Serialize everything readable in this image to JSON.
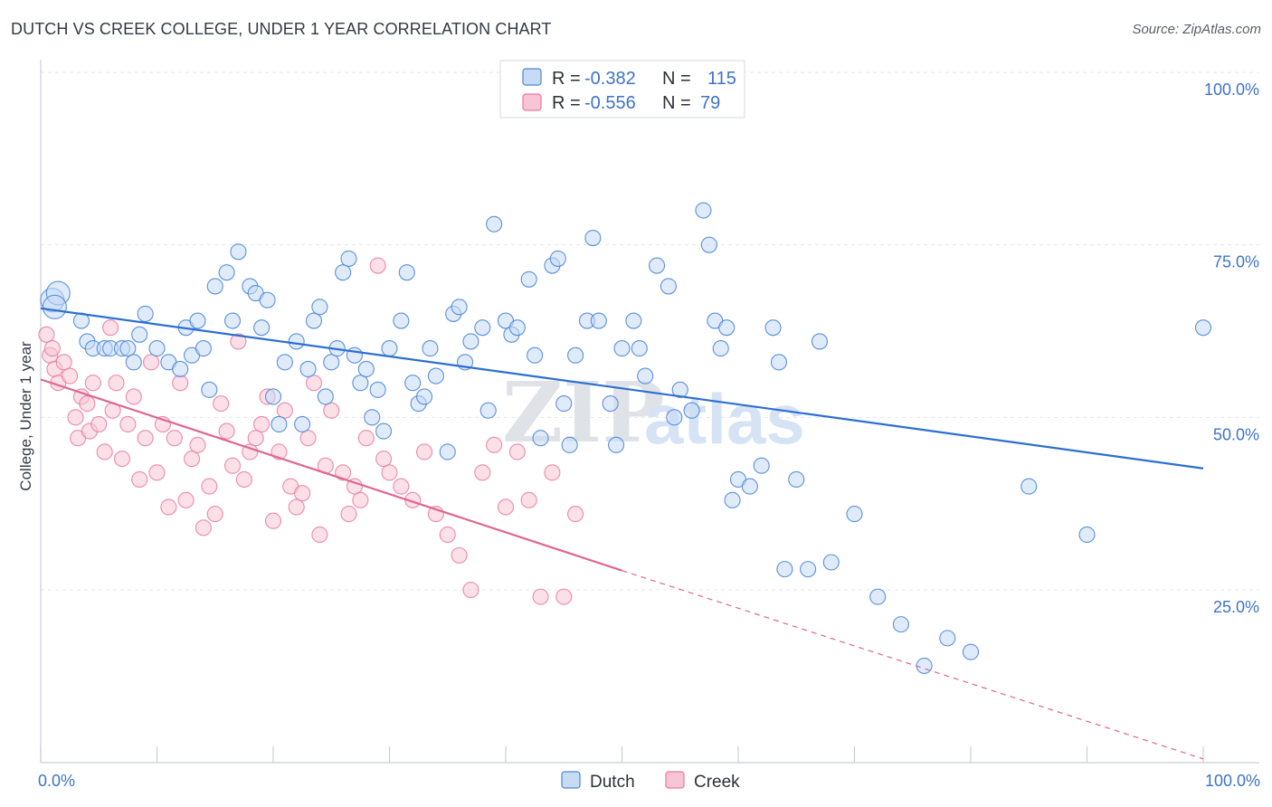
{
  "title": "DUTCH VS CREEK COLLEGE, UNDER 1 YEAR CORRELATION CHART",
  "source": "Source: ZipAtlas.com",
  "watermark": {
    "zip": "ZIP",
    "atlas": "atlas"
  },
  "colors": {
    "dutch": "#4a86d8",
    "dutch_fill": "#c7dbf5",
    "dutch_line": "#2c6fd1",
    "creek": "#e9789f",
    "creek_fill": "#f7c6d6",
    "creek_line": "#e0668f",
    "tick": "#3d73c9",
    "grid": "#e3e7ec"
  },
  "legend": {
    "dutch": {
      "r_label": "R =",
      "r_value": "-0.382",
      "n_label": "N =",
      "n_value": "115"
    },
    "creek": {
      "r_label": "R =",
      "r_value": "-0.556",
      "n_label": "N =",
      "n_value": "79"
    }
  },
  "chart_data": {
    "type": "scatter",
    "title": "DUTCH VS CREEK COLLEGE, UNDER 1 YEAR CORRELATION CHART",
    "xlabel": "",
    "ylabel": "College, Under 1 year",
    "x_tick_labels": [
      "0.0%",
      "100.0%"
    ],
    "y_tick_labels": [
      "25.0%",
      "50.0%",
      "75.0%",
      "100.0%"
    ],
    "xlim": [
      0,
      100
    ],
    "ylim": [
      0,
      105
    ],
    "grid": true,
    "legend_position": "top-center",
    "series": [
      {
        "name": "Dutch",
        "r": -0.382,
        "n": 115,
        "trend": {
          "x": [
            0,
            100
          ],
          "y": [
            65.8,
            42.6
          ]
        },
        "points": [
          [
            1,
            67
          ],
          [
            1.5,
            68
          ],
          [
            1.2,
            66
          ],
          [
            3.5,
            64
          ],
          [
            4,
            61
          ],
          [
            4.5,
            60
          ],
          [
            5.5,
            60
          ],
          [
            6,
            60
          ],
          [
            7,
            60
          ],
          [
            7.5,
            60
          ],
          [
            8,
            58
          ],
          [
            9,
            65
          ],
          [
            8.5,
            62
          ],
          [
            10,
            60
          ],
          [
            11,
            58
          ],
          [
            12,
            57
          ],
          [
            12.5,
            63
          ],
          [
            13,
            59
          ],
          [
            13.5,
            64
          ],
          [
            14,
            60
          ],
          [
            14.5,
            54
          ],
          [
            15,
            69
          ],
          [
            16,
            71
          ],
          [
            16.5,
            64
          ],
          [
            17,
            74
          ],
          [
            18,
            69
          ],
          [
            18.5,
            68
          ],
          [
            19,
            63
          ],
          [
            19.5,
            67
          ],
          [
            20,
            53
          ],
          [
            20.5,
            49
          ],
          [
            21,
            58
          ],
          [
            22,
            61
          ],
          [
            22.5,
            49
          ],
          [
            23,
            57
          ],
          [
            23.5,
            64
          ],
          [
            24,
            66
          ],
          [
            24.5,
            53
          ],
          [
            25,
            58
          ],
          [
            25.5,
            60
          ],
          [
            26,
            71
          ],
          [
            26.5,
            73
          ],
          [
            27,
            59
          ],
          [
            27.5,
            55
          ],
          [
            28,
            57
          ],
          [
            28.5,
            50
          ],
          [
            29,
            54
          ],
          [
            29.5,
            48
          ],
          [
            30,
            60
          ],
          [
            31,
            64
          ],
          [
            31.5,
            71
          ],
          [
            32,
            55
          ],
          [
            32.5,
            52
          ],
          [
            33,
            53
          ],
          [
            33.5,
            60
          ],
          [
            34,
            56
          ],
          [
            35,
            45
          ],
          [
            35.5,
            65
          ],
          [
            36,
            66
          ],
          [
            36.5,
            58
          ],
          [
            37,
            61
          ],
          [
            38,
            63
          ],
          [
            38.5,
            51
          ],
          [
            39,
            78
          ],
          [
            40,
            64
          ],
          [
            40.5,
            62
          ],
          [
            41,
            63
          ],
          [
            42,
            70
          ],
          [
            42.5,
            59
          ],
          [
            43,
            47
          ],
          [
            44,
            72
          ],
          [
            44.5,
            73
          ],
          [
            45,
            52
          ],
          [
            45.5,
            46
          ],
          [
            46,
            59
          ],
          [
            47,
            64
          ],
          [
            47.5,
            76
          ],
          [
            48,
            64
          ],
          [
            49,
            52
          ],
          [
            49.5,
            46
          ],
          [
            50,
            60
          ],
          [
            51,
            64
          ],
          [
            51.5,
            60
          ],
          [
            52,
            56
          ],
          [
            53,
            72
          ],
          [
            54,
            69
          ],
          [
            54.5,
            50
          ],
          [
            55,
            54
          ],
          [
            56,
            51
          ],
          [
            57,
            80
          ],
          [
            57.5,
            75
          ],
          [
            58,
            64
          ],
          [
            58.5,
            60
          ],
          [
            59,
            63
          ],
          [
            59.5,
            38
          ],
          [
            60,
            41
          ],
          [
            61,
            40
          ],
          [
            62,
            43
          ],
          [
            63,
            63
          ],
          [
            63.5,
            58
          ],
          [
            64,
            28
          ],
          [
            65,
            41
          ],
          [
            66,
            28
          ],
          [
            67,
            61
          ],
          [
            68,
            29
          ],
          [
            70,
            36
          ],
          [
            72,
            24
          ],
          [
            74,
            20
          ],
          [
            76,
            14
          ],
          [
            78,
            18
          ],
          [
            80,
            16
          ],
          [
            85,
            40
          ],
          [
            90,
            33
          ],
          [
            100,
            63
          ]
        ]
      },
      {
        "name": "Creek",
        "r": -0.556,
        "n": 79,
        "trend": {
          "x": [
            0,
            50
          ],
          "y": [
            55.5,
            27.8
          ]
        },
        "trend_extension": {
          "x": [
            50,
            100
          ],
          "y": [
            27.8,
            0.5
          ]
        },
        "points": [
          [
            0.5,
            62
          ],
          [
            0.8,
            59
          ],
          [
            1,
            60
          ],
          [
            1.2,
            57
          ],
          [
            1.5,
            55
          ],
          [
            2,
            58
          ],
          [
            2.5,
            56
          ],
          [
            3,
            50
          ],
          [
            3.2,
            47
          ],
          [
            3.5,
            53
          ],
          [
            4,
            52
          ],
          [
            4.2,
            48
          ],
          [
            4.5,
            55
          ],
          [
            5,
            49
          ],
          [
            5.5,
            45
          ],
          [
            6,
            63
          ],
          [
            6.2,
            51
          ],
          [
            6.5,
            55
          ],
          [
            7,
            44
          ],
          [
            7.5,
            49
          ],
          [
            8,
            53
          ],
          [
            8.5,
            41
          ],
          [
            9,
            47
          ],
          [
            9.5,
            58
          ],
          [
            10,
            42
          ],
          [
            10.5,
            49
          ],
          [
            11,
            37
          ],
          [
            11.5,
            47
          ],
          [
            12,
            55
          ],
          [
            12.5,
            38
          ],
          [
            13,
            44
          ],
          [
            13.5,
            46
          ],
          [
            14,
            34
          ],
          [
            14.5,
            40
          ],
          [
            15,
            36
          ],
          [
            15.5,
            52
          ],
          [
            16,
            48
          ],
          [
            16.5,
            43
          ],
          [
            17,
            61
          ],
          [
            17.5,
            41
          ],
          [
            18,
            45
          ],
          [
            18.5,
            47
          ],
          [
            19,
            49
          ],
          [
            19.5,
            53
          ],
          [
            20,
            35
          ],
          [
            20.5,
            45
          ],
          [
            21,
            51
          ],
          [
            21.5,
            40
          ],
          [
            22,
            37
          ],
          [
            22.5,
            39
          ],
          [
            23,
            47
          ],
          [
            23.5,
            55
          ],
          [
            24,
            33
          ],
          [
            24.5,
            43
          ],
          [
            25,
            51
          ],
          [
            26,
            42
          ],
          [
            26.5,
            36
          ],
          [
            27,
            40
          ],
          [
            27.5,
            38
          ],
          [
            28,
            47
          ],
          [
            29,
            72
          ],
          [
            29.5,
            44
          ],
          [
            30,
            42
          ],
          [
            31,
            40
          ],
          [
            32,
            38
          ],
          [
            33,
            45
          ],
          [
            34,
            36
          ],
          [
            35,
            33
          ],
          [
            36,
            30
          ],
          [
            37,
            25
          ],
          [
            38,
            42
          ],
          [
            39,
            46
          ],
          [
            40,
            37
          ],
          [
            41,
            45
          ],
          [
            42,
            38
          ],
          [
            43,
            24
          ],
          [
            44,
            42
          ],
          [
            45,
            24
          ],
          [
            46,
            36
          ]
        ]
      }
    ]
  }
}
